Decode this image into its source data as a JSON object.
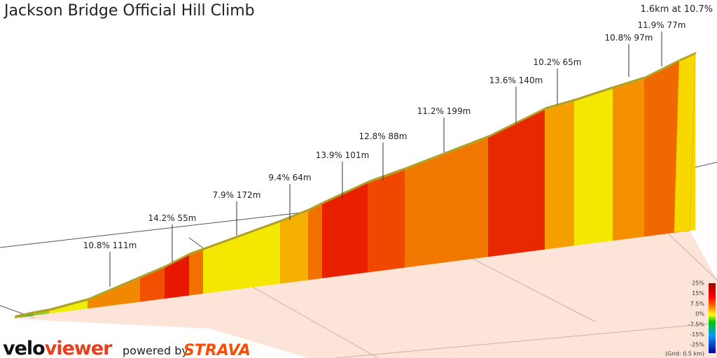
{
  "header": {
    "title": "Jackson Bridge Official Hill Climb",
    "summary": "1.6km at 10.7%"
  },
  "segments": [
    {
      "label": "10.8% 111m"
    },
    {
      "label": "14.2% 55m"
    },
    {
      "label": "7.9% 172m"
    },
    {
      "label": "9.4% 64m"
    },
    {
      "label": "13.9% 101m"
    },
    {
      "label": "12.8% 88m"
    },
    {
      "label": "11.2% 199m"
    },
    {
      "label": "13.6% 140m"
    },
    {
      "label": "10.2% 65m"
    },
    {
      "label": "10.8% 97m"
    },
    {
      "label": "11.9% 77m"
    }
  ],
  "legend": {
    "ticks": [
      "25%",
      "15%",
      "7.5%",
      "0%",
      "-7.5%",
      "-15%",
      "-25%"
    ],
    "grid_note": "(Grid: 0.5 km)"
  },
  "footer": {
    "brand_velo": "velo",
    "brand_viewer": "viewer",
    "powered": "powered by",
    "strava": "STRAVA"
  }
}
